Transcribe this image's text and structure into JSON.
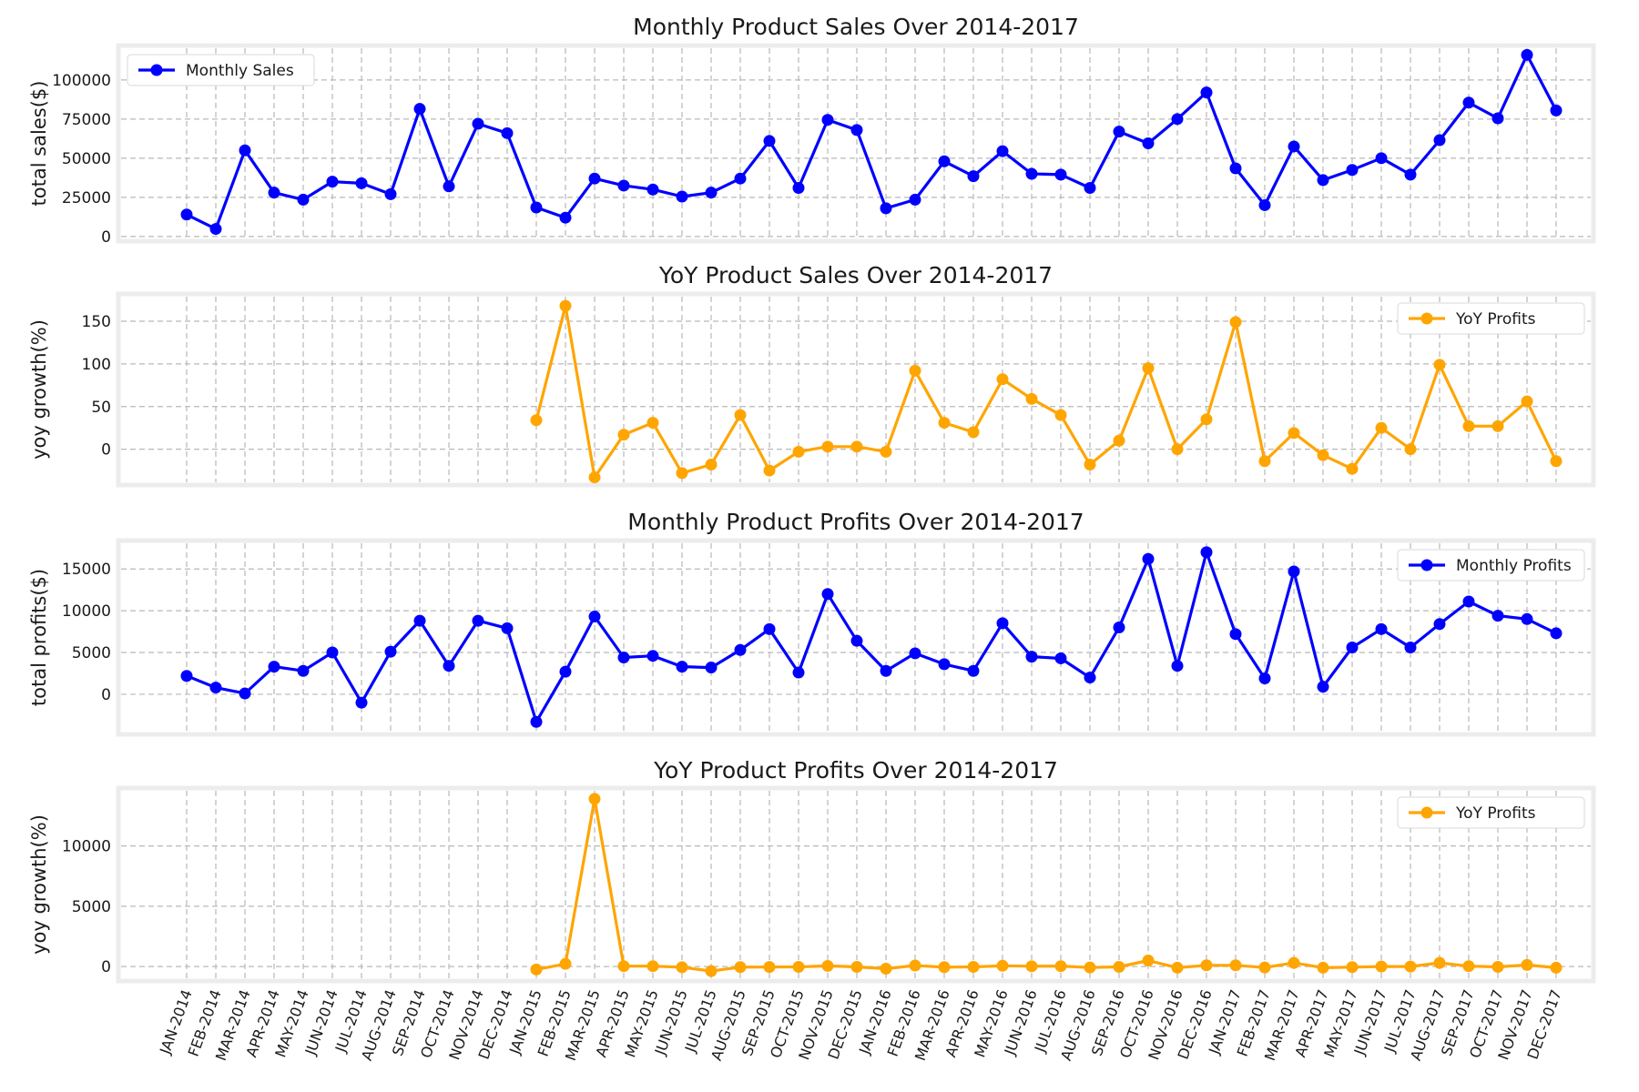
{
  "chart_data": [
    {
      "type": "line",
      "title": "Monthly Product Sales Over 2014-2017",
      "xlabel": "",
      "ylabel": "total sales($)",
      "ylim": [
        -3000,
        122000
      ],
      "yticks": [
        0,
        25000,
        50000,
        75000,
        100000
      ],
      "grid": true,
      "legend": "top-left",
      "series": [
        {
          "name": "Monthly Sales",
          "color": "#0000ff",
          "values": [
            14000,
            4800,
            55000,
            28000,
            23500,
            35000,
            34000,
            27000,
            81500,
            32000,
            72000,
            66000,
            18500,
            12000,
            37000,
            32500,
            30000,
            25500,
            28000,
            37000,
            61000,
            31000,
            74500,
            68000,
            18000,
            23500,
            48000,
            38500,
            54500,
            40000,
            39500,
            31000,
            67000,
            59500,
            75000,
            92000,
            43500,
            20000,
            57500,
            36000,
            42500,
            50000,
            39500,
            61500,
            85500,
            75500,
            116000,
            80500
          ]
        }
      ]
    },
    {
      "type": "line",
      "title": "YoY Product Sales Over 2014-2017",
      "xlabel": "",
      "ylabel": "yoy growth(%)",
      "ylim": [
        -42,
        182
      ],
      "yticks": [
        0,
        50,
        100,
        150
      ],
      "grid": true,
      "legend": "top-right",
      "series": [
        {
          "name": "YoY Profits",
          "color": "#ffa500",
          "values": [
            null,
            null,
            null,
            null,
            null,
            null,
            null,
            null,
            null,
            null,
            null,
            null,
            34,
            168,
            -33,
            17,
            31,
            -28,
            -18,
            40,
            -25,
            -3,
            3,
            3,
            -3,
            92,
            31,
            20,
            82,
            59,
            40,
            -18,
            10,
            95,
            0,
            35,
            149,
            -14,
            19,
            -7,
            -23,
            25,
            0,
            99,
            27,
            27,
            56,
            -14
          ]
        }
      ]
    },
    {
      "type": "line",
      "title": "Monthly Product Profits Over 2014-2017",
      "xlabel": "",
      "ylabel": "total profits($)",
      "ylim": [
        -4800,
        18400
      ],
      "yticks": [
        0,
        5000,
        10000,
        15000
      ],
      "grid": true,
      "legend": "top-right",
      "series": [
        {
          "name": "Monthly Profits",
          "color": "#0000ff",
          "values": [
            2200,
            800,
            100,
            3300,
            2800,
            5000,
            -1000,
            5100,
            8800,
            3400,
            8800,
            7900,
            -3300,
            2700,
            9300,
            4400,
            4600,
            3300,
            3200,
            5300,
            7800,
            2600,
            12000,
            6400,
            2800,
            4900,
            3600,
            2800,
            8500,
            4500,
            4300,
            2000,
            8000,
            16200,
            3400,
            17000,
            7200,
            1900,
            14700,
            900,
            5600,
            7800,
            5600,
            8400,
            11100,
            9400,
            9000,
            7300
          ]
        }
      ]
    },
    {
      "type": "line",
      "title": "YoY Product Profits Over 2014-2017",
      "xlabel": "",
      "ylabel": "yoy growth(%)",
      "ylim": [
        -1200,
        14800
      ],
      "yticks": [
        0,
        5000,
        10000
      ],
      "grid": true,
      "legend": "top-right",
      "series": [
        {
          "name": "YoY Profits",
          "color": "#ffa500",
          "values": [
            null,
            null,
            null,
            null,
            null,
            null,
            null,
            null,
            null,
            null,
            null,
            null,
            -250,
            220,
            13900,
            30,
            30,
            -60,
            -380,
            -50,
            -40,
            -30,
            50,
            -30,
            -180,
            80,
            -50,
            -30,
            60,
            20,
            30,
            -80,
            -30,
            500,
            -100,
            100,
            100,
            -80,
            300,
            -100,
            -50,
            0,
            0,
            300,
            30,
            -30,
            130,
            -100
          ]
        }
      ]
    }
  ],
  "x_categories": [
    "JAN-2014",
    "FEB-2014",
    "MAR-2014",
    "APR-2014",
    "MAY-2014",
    "JUN-2014",
    "JUL-2014",
    "AUG-2014",
    "SEP-2014",
    "OCT-2014",
    "NOV-2014",
    "DEC-2014",
    "JAN-2015",
    "FEB-2015",
    "MAR-2015",
    "APR-2015",
    "MAY-2015",
    "JUN-2015",
    "JUL-2015",
    "AUG-2015",
    "SEP-2015",
    "OCT-2015",
    "NOV-2015",
    "DEC-2015",
    "JAN-2016",
    "FEB-2016",
    "MAR-2016",
    "APR-2016",
    "MAY-2016",
    "JUN-2016",
    "JUL-2016",
    "AUG-2016",
    "SEP-2016",
    "OCT-2016",
    "NOV-2016",
    "DEC-2016",
    "JAN-2017",
    "FEB-2017",
    "MAR-2017",
    "APR-2017",
    "MAY-2017",
    "JUN-2017",
    "JUL-2017",
    "AUG-2017",
    "SEP-2017",
    "OCT-2017",
    "NOV-2017",
    "DEC-2017"
  ]
}
